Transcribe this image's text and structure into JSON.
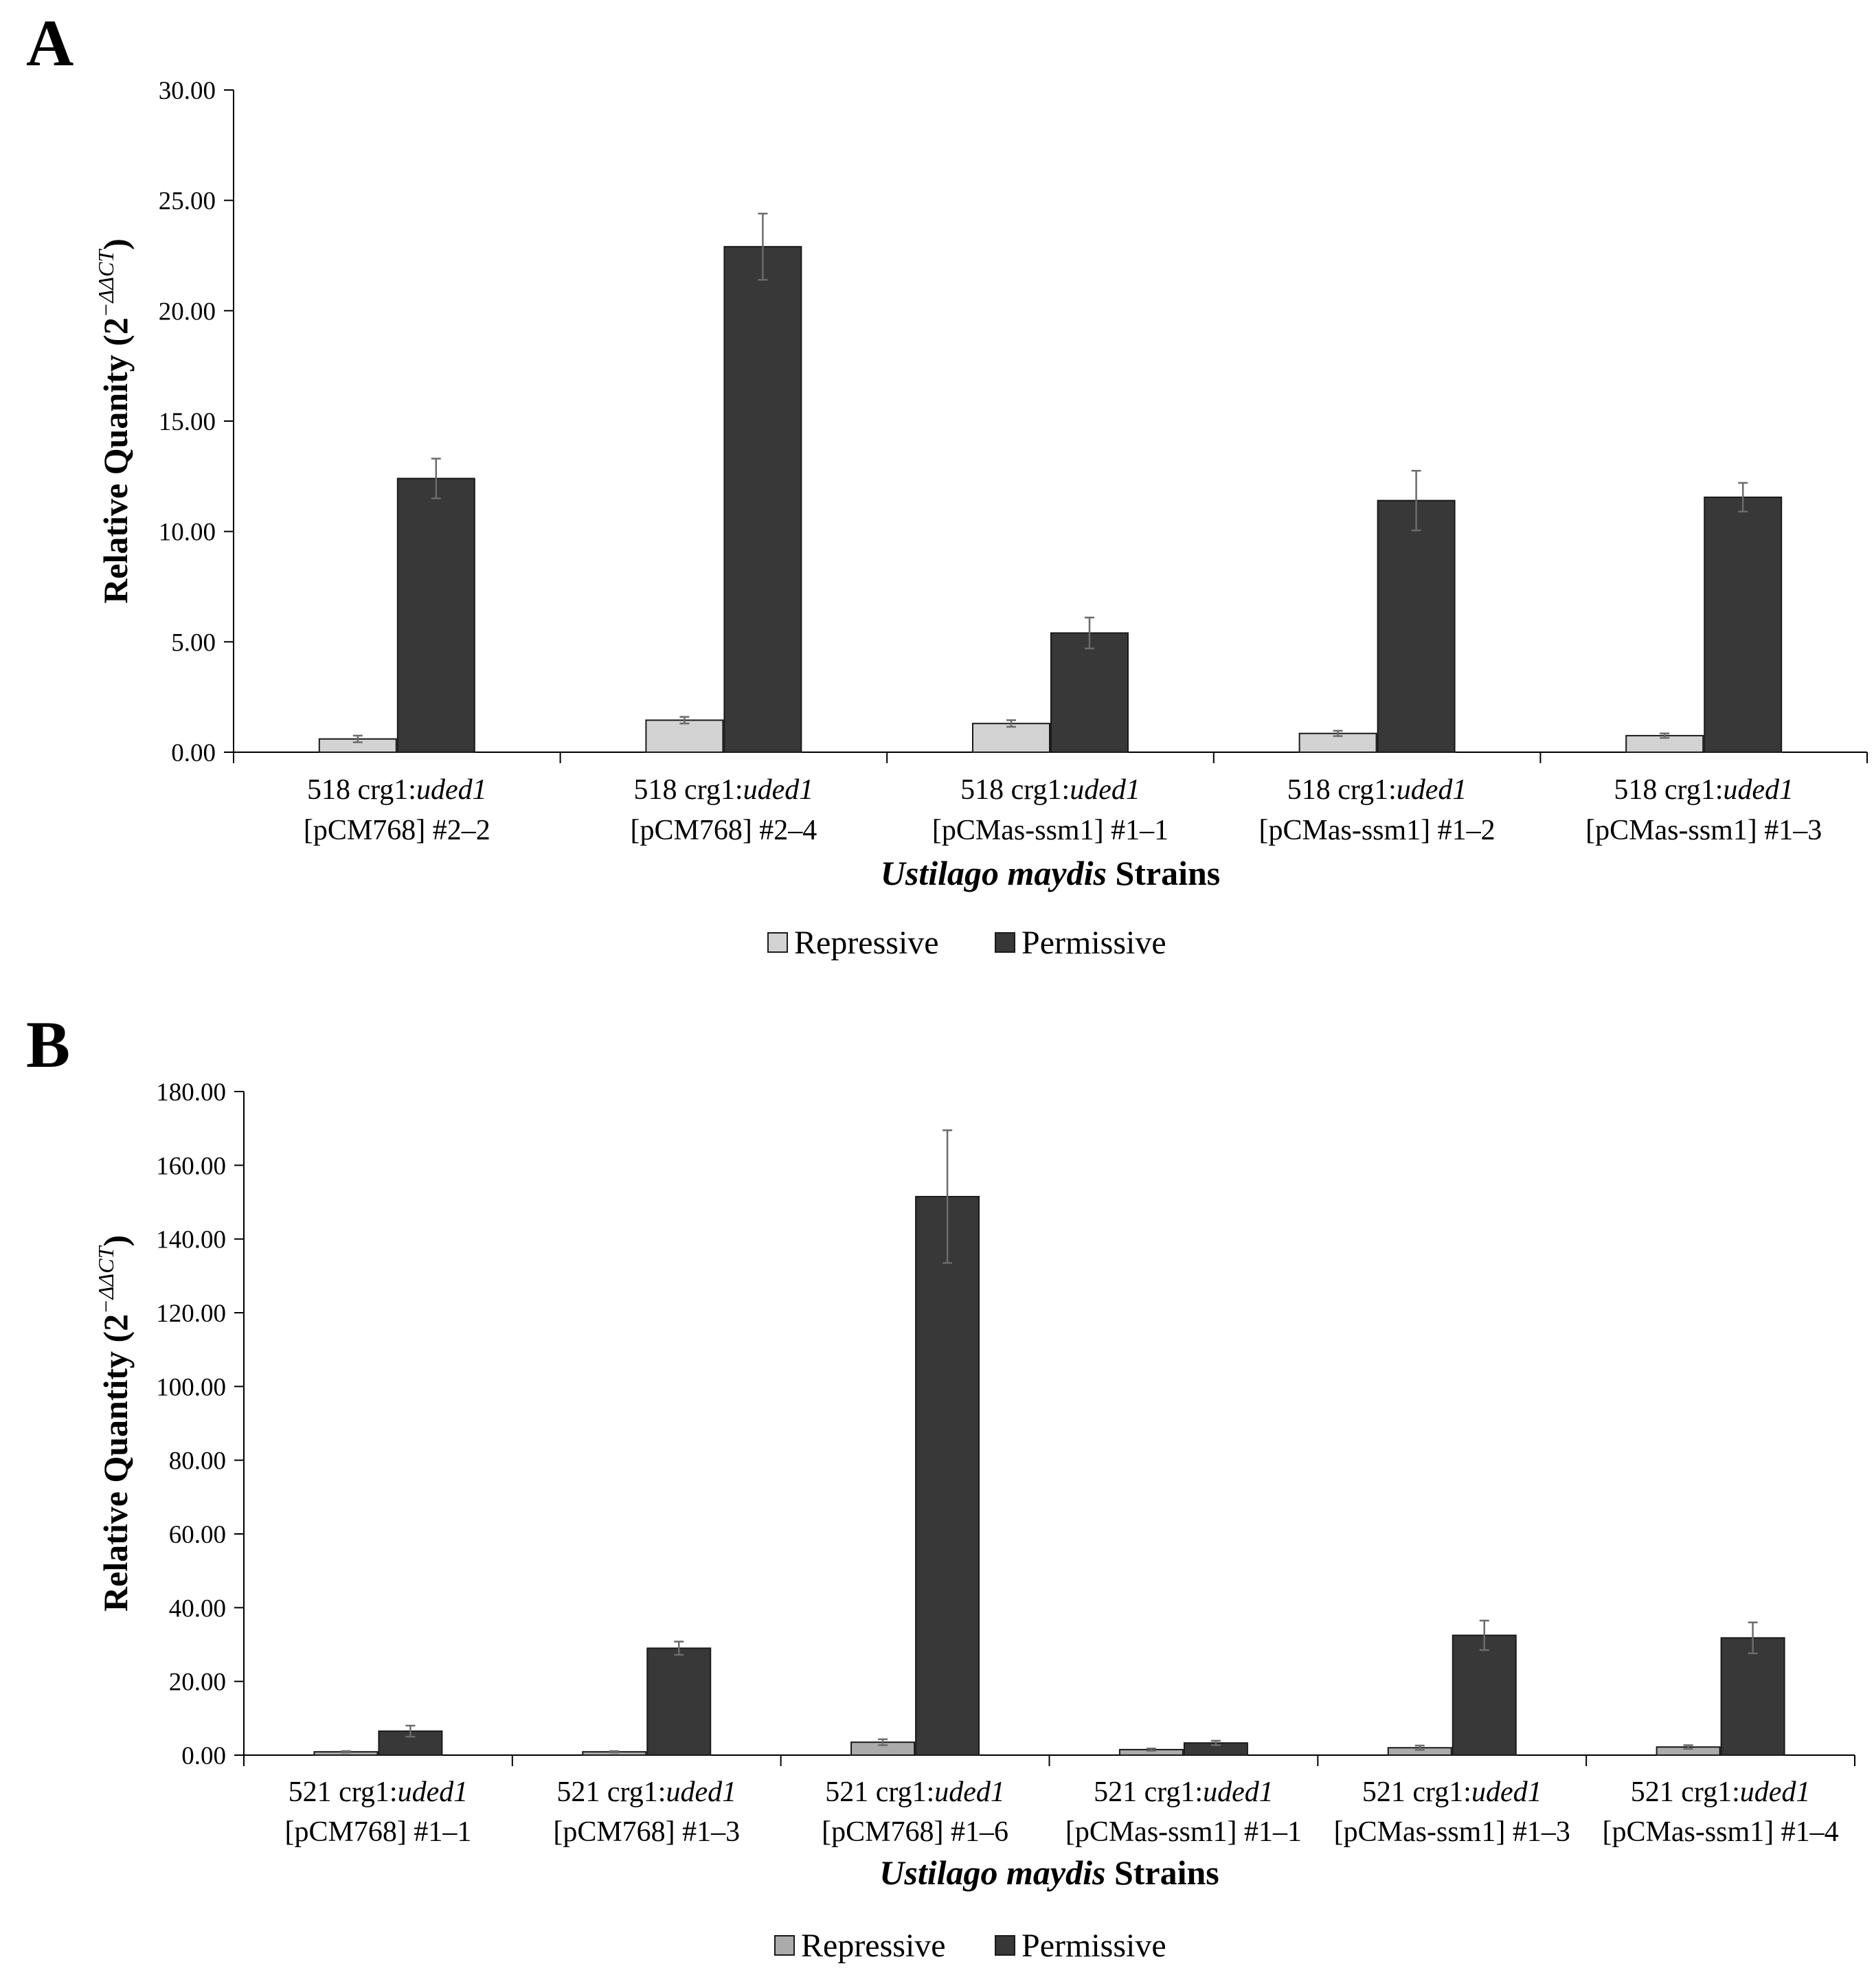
{
  "colors": {
    "repressive_fill": "#d3d3d3",
    "repressive_fill_b": "#ababab",
    "permissive_fill": "#383838",
    "bar_stroke": "#1a1a1a",
    "axis": "#000000",
    "error_bar": "#6b6b6b"
  },
  "chart_data": [
    {
      "type": "bar",
      "panel_label": "A",
      "ylabel": "Relative Quanity (2",
      "ylabel_superscript": "−ΔΔCT",
      "xlabel_italic": "Ustilago maydis",
      "xlabel_rest": " Strains",
      "ylim": [
        0,
        30
      ],
      "yticks": [
        0,
        5,
        10,
        15,
        20,
        25,
        30
      ],
      "ytick_labels": [
        "0.00",
        "5.00",
        "10.00",
        "15.00",
        "20.00",
        "25.00",
        "30.00"
      ],
      "legend": [
        "Repressive",
        "Permissive"
      ],
      "categories": [
        {
          "prefix": "518 crg1:",
          "gene": "uded1",
          "line2": "[pCM768] #2–2"
        },
        {
          "prefix": "518 crg1:",
          "gene": "uded1",
          "line2": "[pCM768] #2–4"
        },
        {
          "prefix": "518 crg1:",
          "gene": "uded1",
          "line2": "[pCMas-ssm1] #1–1"
        },
        {
          "prefix": "518 crg1:",
          "gene": "uded1",
          "line2": "[pCMas-ssm1] #1–2"
        },
        {
          "prefix": "518 crg1:",
          "gene": "uded1",
          "line2": "[pCMas-ssm1] #1–3"
        }
      ],
      "series": [
        {
          "name": "Repressive",
          "values": [
            0.6,
            1.45,
            1.3,
            0.85,
            0.75
          ],
          "errors": [
            0.15,
            0.15,
            0.15,
            0.12,
            0.1
          ]
        },
        {
          "name": "Permissive",
          "values": [
            12.4,
            22.9,
            5.4,
            11.4,
            11.55
          ],
          "errors": [
            0.9,
            1.5,
            0.7,
            1.35,
            0.65
          ]
        }
      ]
    },
    {
      "type": "bar",
      "panel_label": "B",
      "ylabel": "Relative Quantity (2",
      "ylabel_superscript": "−ΔΔCT",
      "xlabel_italic": "Ustilago maydis",
      "xlabel_rest": " Strains",
      "ylim": [
        0,
        180
      ],
      "yticks": [
        0,
        20,
        40,
        60,
        80,
        100,
        120,
        140,
        160,
        180
      ],
      "ytick_labels": [
        "0.00",
        "20.00",
        "40.00",
        "60.00",
        "80.00",
        "100.00",
        "120.00",
        "140.00",
        "160.00",
        "180.00"
      ],
      "legend": [
        "Repressive",
        "Permissive"
      ],
      "categories": [
        {
          "prefix": "521 crg1:",
          "gene": "uded1",
          "line2": "[pCM768] #1–1"
        },
        {
          "prefix": "521 crg1:",
          "gene": "uded1",
          "line2": "[pCM768] #1–3"
        },
        {
          "prefix": "521 crg1:",
          "gene": "uded1",
          "line2": "[pCM768] #1–6"
        },
        {
          "prefix": "521 crg1:",
          "gene": "uded1",
          "line2": "[pCMas-ssm1] #1–1"
        },
        {
          "prefix": "521 crg1:",
          "gene": "uded1",
          "line2": "[pCMas-ssm1] #1–3"
        },
        {
          "prefix": "521 crg1:",
          "gene": "uded1",
          "line2": "[pCMas-ssm1] #1–4"
        }
      ],
      "series": [
        {
          "name": "Repressive",
          "values": [
            0.9,
            0.9,
            3.5,
            1.5,
            2.0,
            2.2
          ],
          "errors": [
            0.2,
            0.2,
            0.8,
            0.3,
            0.6,
            0.5
          ]
        },
        {
          "name": "Permissive",
          "values": [
            6.5,
            29.0,
            151.5,
            3.3,
            32.5,
            31.8
          ],
          "errors": [
            1.5,
            1.8,
            18.0,
            0.6,
            4.0,
            4.2
          ]
        }
      ]
    }
  ]
}
